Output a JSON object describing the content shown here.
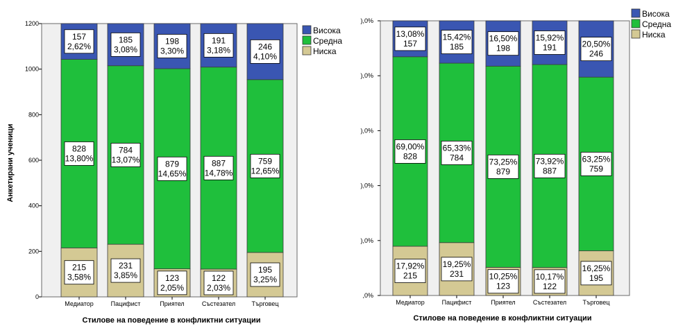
{
  "colors": {
    "high": "#3a56b2",
    "medium": "#1fbf3c",
    "low": "#d4c994"
  },
  "legend": [
    "Висока",
    "Средна",
    "Ниска"
  ],
  "chart_data": [
    {
      "type": "bar",
      "stacked": true,
      "categories": [
        "Медиатор",
        "Пацифист",
        "Приятел",
        "Състезател",
        "Търговец"
      ],
      "series": [
        {
          "name": "Ниска",
          "values": [
            215,
            231,
            123,
            122,
            195
          ],
          "labels": [
            "215\n3,58%",
            "231\n3,85%",
            "123\n2,05%",
            "122\n2,03%",
            "195\n3,25%"
          ]
        },
        {
          "name": "Средна",
          "values": [
            828,
            784,
            879,
            887,
            759
          ],
          "labels": [
            "828\n13,80%",
            "784\n13,07%",
            "879\n14,65%",
            "887\n14,78%",
            "759\n12,65%"
          ]
        },
        {
          "name": "Висока",
          "values": [
            157,
            185,
            198,
            191,
            246
          ],
          "labels": [
            "157\n2,62%",
            "185\n3,08%",
            "198\n3,30%",
            "191\n3,18%",
            "246\n4,10%"
          ]
        }
      ],
      "xlabel": "Стилове на поведение в конфликтни ситуации",
      "ylabel": "Анкетирани ученици",
      "ylim": [
        0,
        1200
      ],
      "yticks": [
        "0",
        "200",
        "400",
        "600",
        "800",
        "1000",
        "1200"
      ]
    },
    {
      "type": "bar",
      "stacked": true,
      "percent": true,
      "categories": [
        "Медиатор",
        "Пацифист",
        "Приятел",
        "Състезател",
        "Търговец"
      ],
      "series": [
        {
          "name": "Ниска",
          "values": [
            17.92,
            19.25,
            10.25,
            10.17,
            16.25
          ],
          "labels": [
            "17,92%\n215",
            "19,25%\n231",
            "10,25%\n123",
            "10,17%\n122",
            "16,25%\n195"
          ]
        },
        {
          "name": "Средна",
          "values": [
            69.0,
            65.33,
            73.25,
            73.92,
            63.25
          ],
          "labels": [
            "69,00%\n828",
            "65,33%\n784",
            "73,25%\n879",
            "73,92%\n887",
            "63,25%\n759"
          ]
        },
        {
          "name": "Висока",
          "values": [
            13.08,
            15.42,
            16.5,
            15.92,
            20.5
          ],
          "labels": [
            "13,08%\n157",
            "15,42%\n185",
            "16,50%\n198",
            "15,92%\n191",
            "20,50%\n246"
          ]
        }
      ],
      "xlabel": "Стилове на поведение в конфликтни ситуации",
      "ylim": [
        0,
        100
      ],
      "yticks": [
        ",0%",
        "),0%",
        "),0%",
        "),0%",
        "),0%",
        "),0%"
      ]
    }
  ]
}
